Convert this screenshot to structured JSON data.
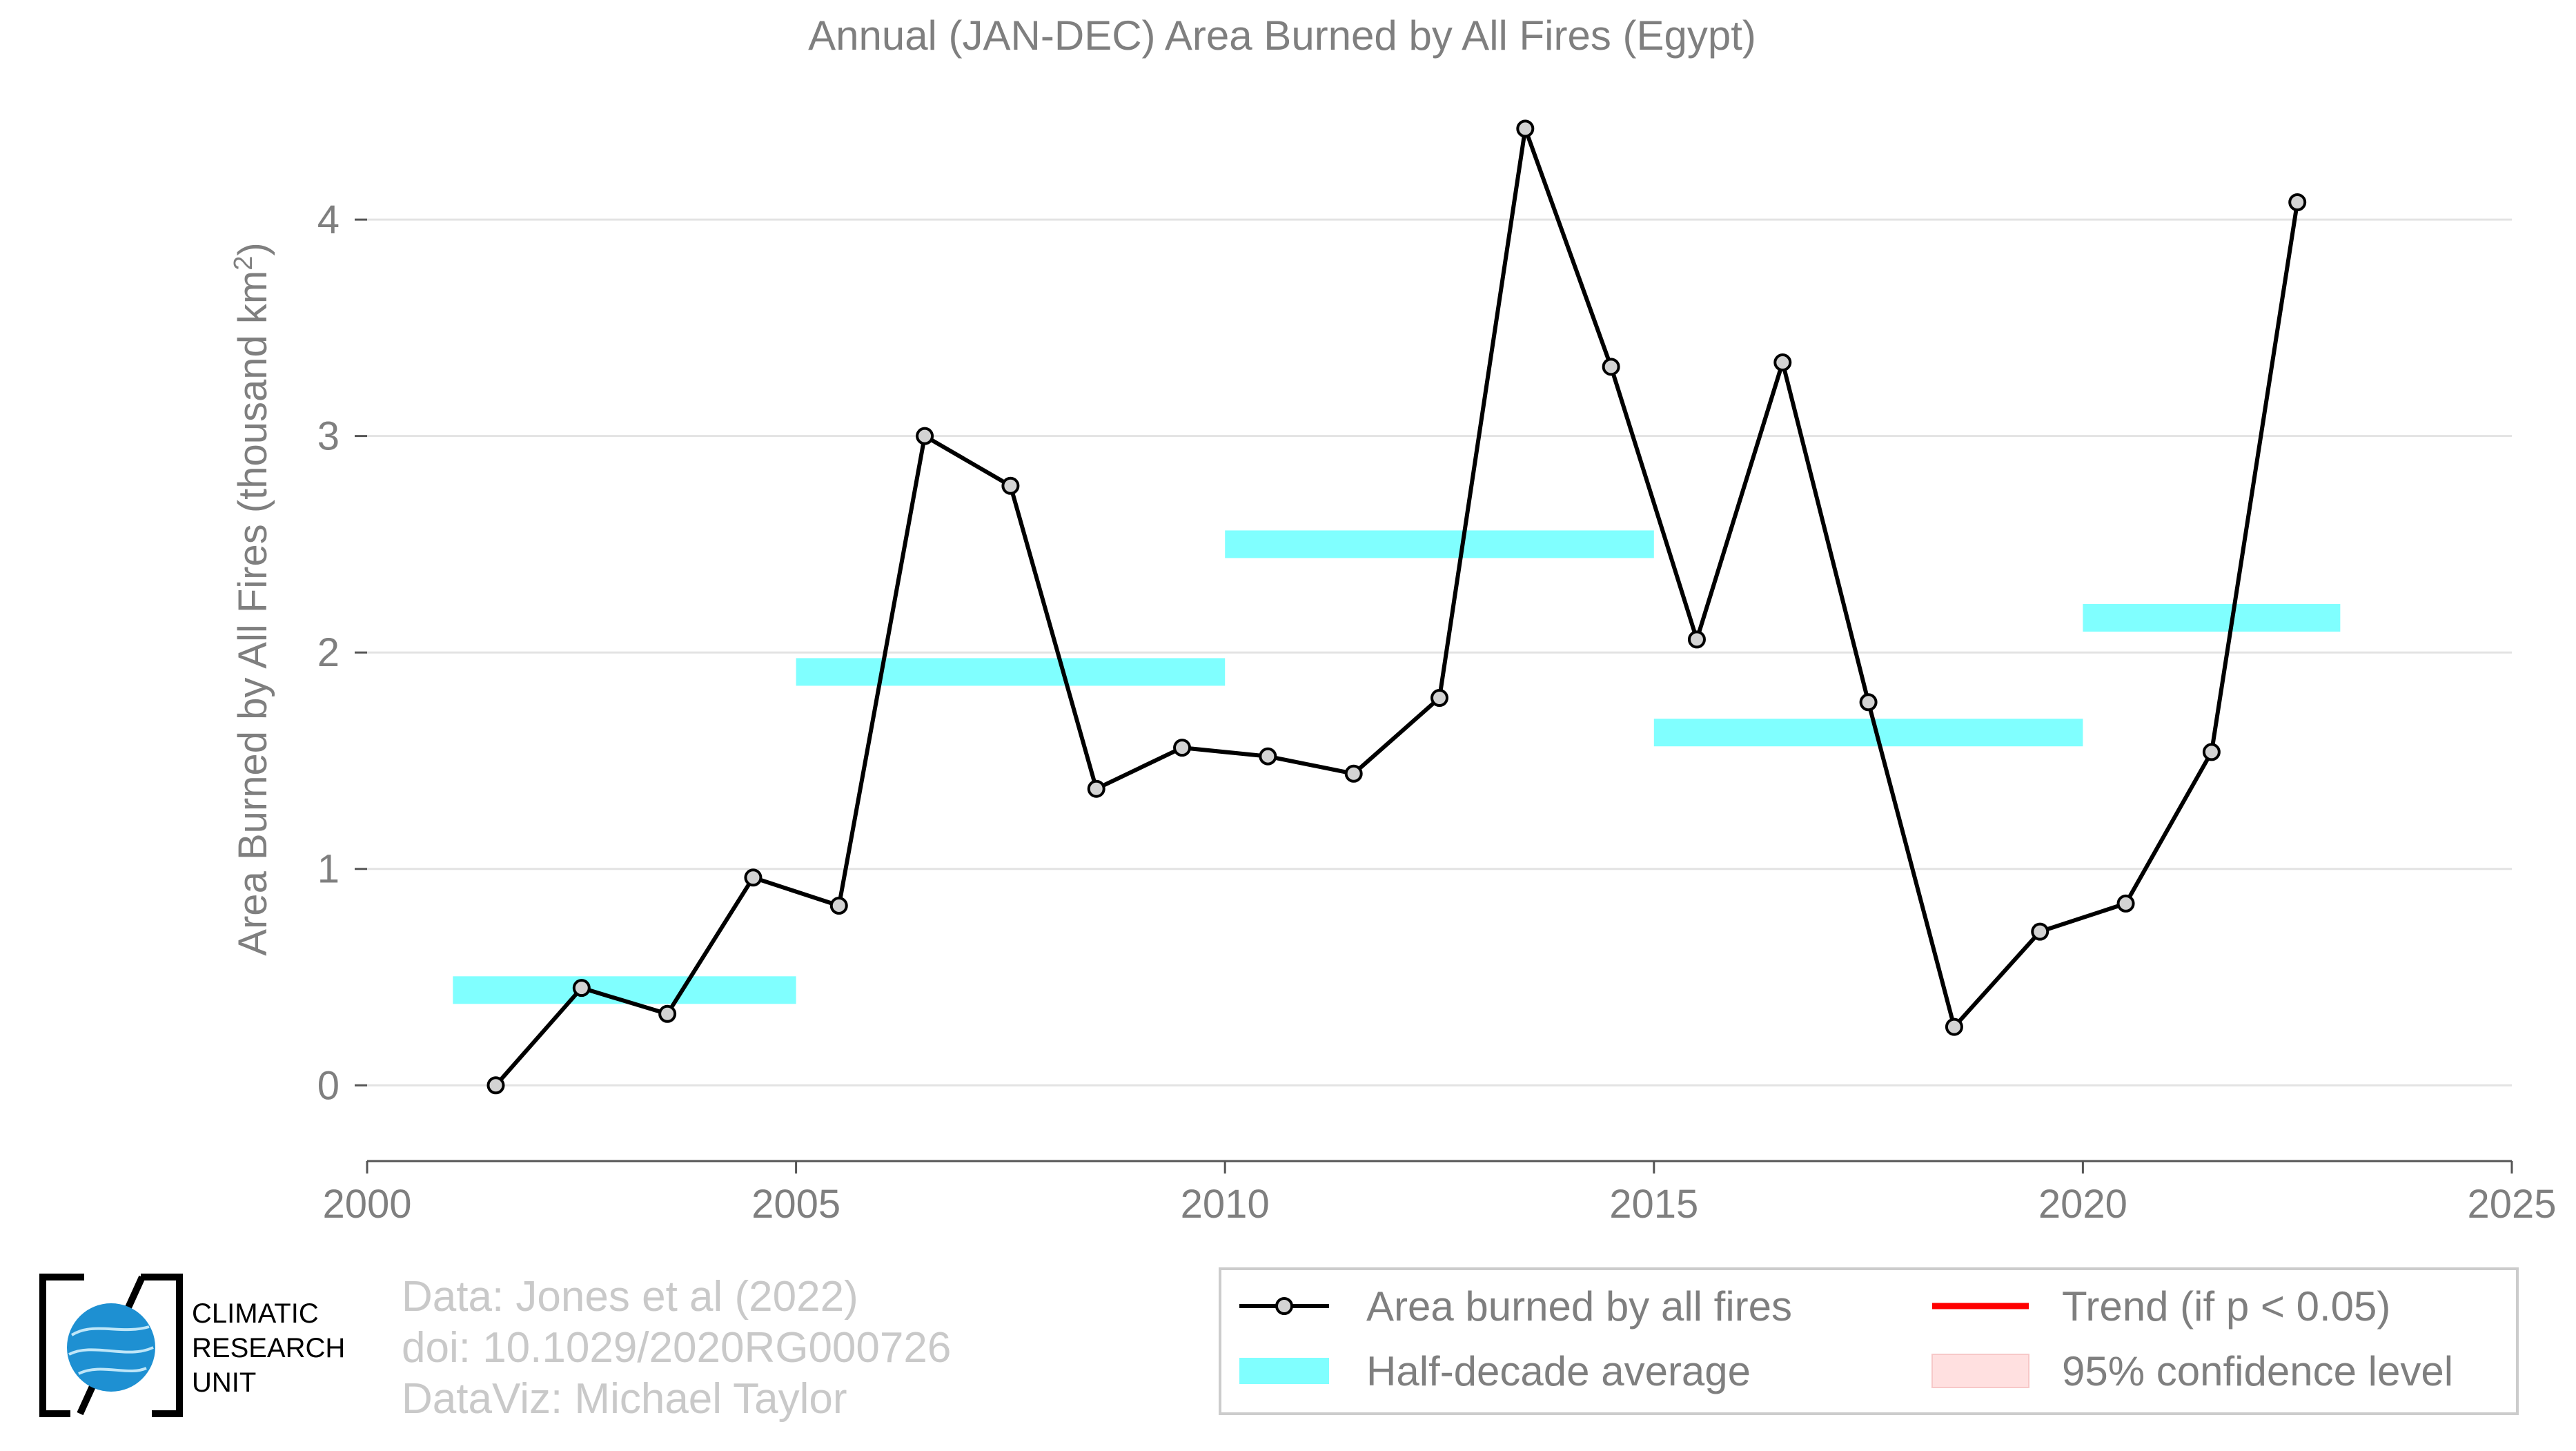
{
  "chart_data": {
    "type": "line",
    "title": "Annual (JAN-DEC) Area Burned by All Fires (Egypt)",
    "xlabel": "",
    "ylabel": "Area Burned by All Fires (thousand km",
    "ylabel_superscript": "2",
    "ylabel_suffix": ")",
    "xlim": [
      2000,
      2025
    ],
    "ylim": [
      -0.35,
      4.6
    ],
    "x_ticks": [
      2000,
      2005,
      2010,
      2015,
      2020,
      2025
    ],
    "x_tick_labels": [
      "2000",
      "2005",
      "2010",
      "2015",
      "2020",
      "2025"
    ],
    "y_ticks": [
      0,
      1,
      2,
      3,
      4
    ],
    "y_tick_labels": [
      "0",
      "1",
      "2",
      "3",
      "4"
    ],
    "grid": true,
    "series": [
      {
        "name": "Area burned by all fires",
        "color": "#000000",
        "x": [
          2001.5,
          2002.5,
          2003.5,
          2004.5,
          2005.5,
          2006.5,
          2007.5,
          2008.5,
          2009.5,
          2010.5,
          2011.5,
          2012.5,
          2013.5,
          2014.5,
          2015.5,
          2016.5,
          2017.5,
          2018.5,
          2019.5,
          2020.5,
          2021.5,
          2022.5
        ],
        "values": [
          0.0,
          0.45,
          0.33,
          0.96,
          0.83,
          3.0,
          2.77,
          1.37,
          1.56,
          1.52,
          1.44,
          1.79,
          4.42,
          3.32,
          2.06,
          3.34,
          1.77,
          0.27,
          0.71,
          0.84,
          1.54,
          4.08
        ]
      }
    ],
    "half_decade_average": {
      "name": "Half-decade average",
      "color": "#80ffff",
      "segments": [
        {
          "start": 2001,
          "end": 2005,
          "value": 0.44
        },
        {
          "start": 2005,
          "end": 2010,
          "value": 1.91
        },
        {
          "start": 2010,
          "end": 2015,
          "value": 2.5
        },
        {
          "start": 2015,
          "end": 2020,
          "value": 1.63
        },
        {
          "start": 2020,
          "end": 2023,
          "value": 2.16
        }
      ]
    },
    "legend": {
      "position": "bottom-right",
      "entries": [
        {
          "label": "Area burned by all fires",
          "kind": "line-marker",
          "color": "#000000"
        },
        {
          "label": "Half-decade average",
          "kind": "patch",
          "color": "#80ffff"
        },
        {
          "label": "Trend (if p < 0.05)",
          "kind": "line",
          "color": "#ff0000"
        },
        {
          "label": "95% confidence level",
          "kind": "patch",
          "color": "#ffe0e0"
        }
      ]
    }
  },
  "credits": {
    "line1": "Data: Jones et al (2022)",
    "line2": "doi: 10.1029/2020RG000726",
    "line3": "DataViz: Michael Taylor"
  },
  "logo": {
    "line1": "CLIMATIC",
    "line2": "RESEARCH",
    "line3": "UNIT",
    "color": "#1e90d2"
  }
}
